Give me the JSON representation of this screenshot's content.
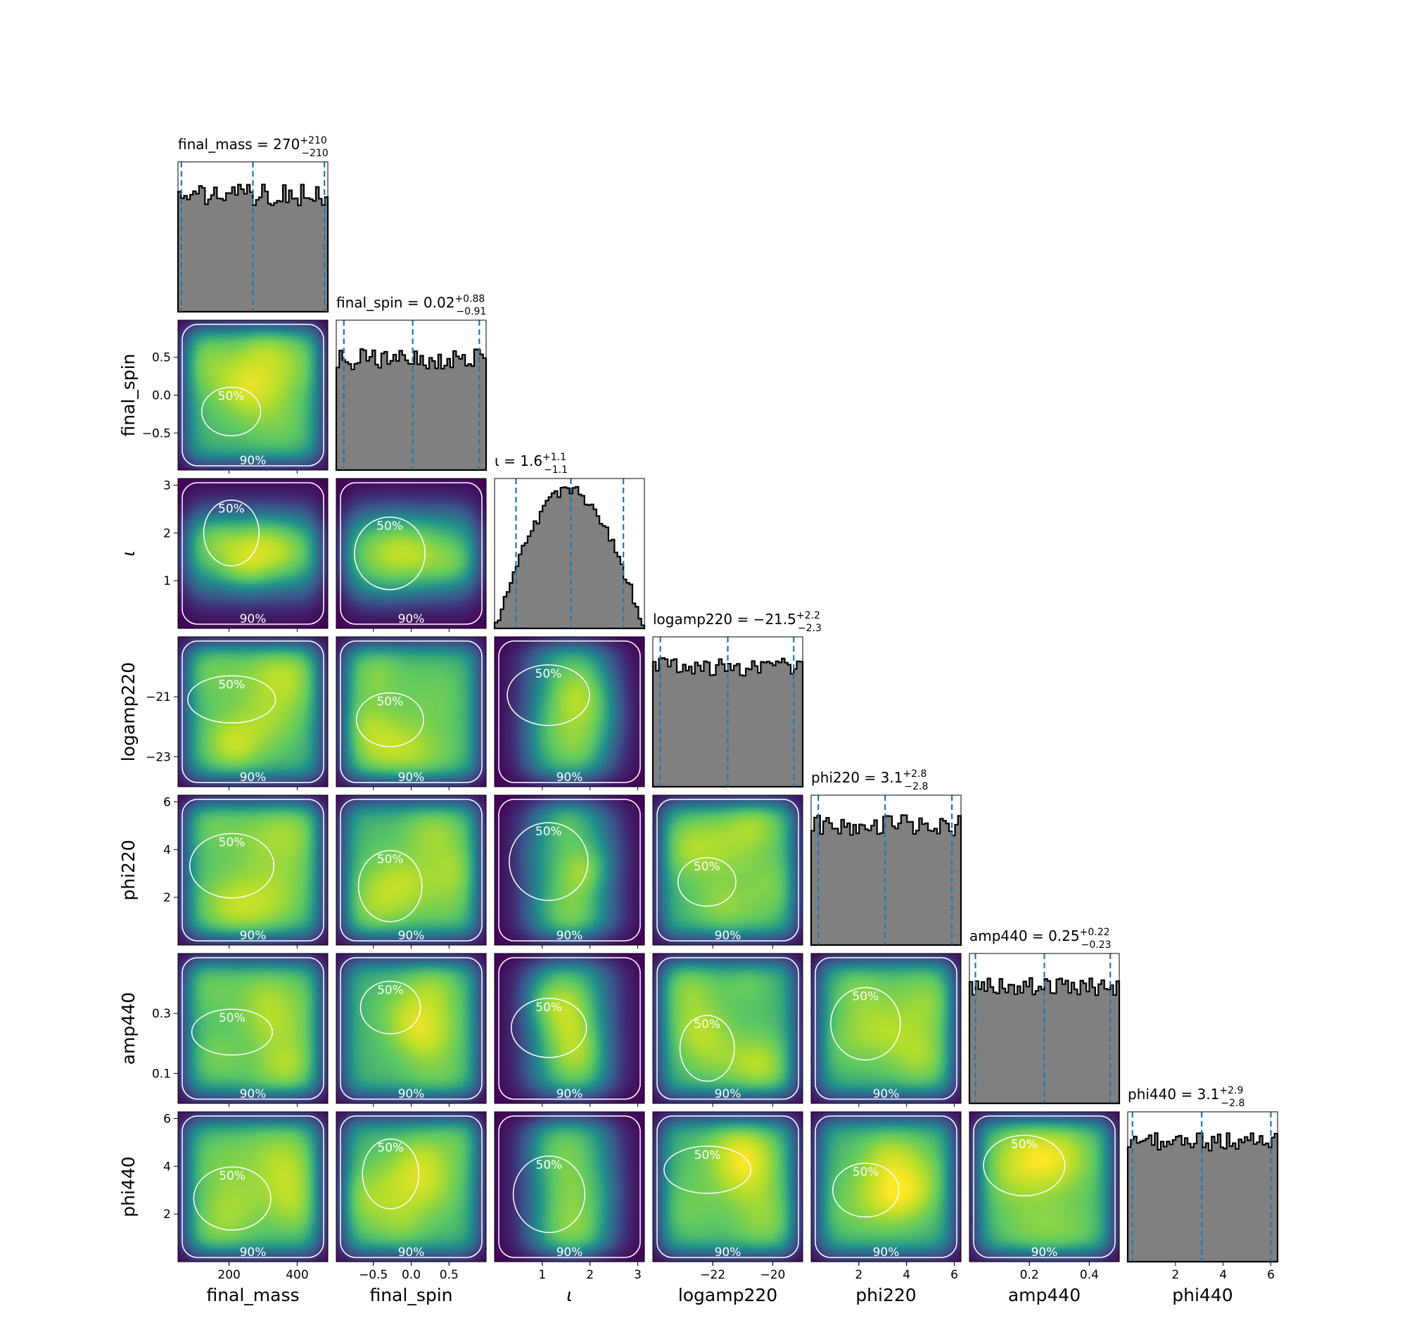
{
  "chart_data": {
    "type": "corner",
    "parameters": [
      {
        "name": "final_mass",
        "label": "final_mass",
        "range": [
          50,
          490
        ],
        "ticks": [
          {
            "v": 200,
            "t": "200"
          },
          {
            "v": 400,
            "t": "400"
          }
        ],
        "title": {
          "main": "final_mass = 270",
          "sup": "+210",
          "sub": "−210"
        },
        "quantiles": [
          60,
          270,
          480
        ],
        "hist_seed": 11,
        "hist_base": 0.78,
        "hist_noise": 0.07
      },
      {
        "name": "final_spin",
        "label": "final_spin",
        "range": [
          -0.99,
          0.99
        ],
        "ticks": [
          {
            "v": -0.5,
            "t": "−0.5"
          },
          {
            "v": 0.0,
            "t": "0.0"
          },
          {
            "v": 0.5,
            "t": "0.5"
          }
        ],
        "title": {
          "main": "final_spin = 0.02",
          "sup": "+0.88",
          "sub": "−0.91"
        },
        "quantiles": [
          -0.89,
          0.02,
          0.9
        ],
        "hist_seed": 23,
        "hist_base": 0.74,
        "hist_noise": 0.07
      },
      {
        "name": "inclination",
        "label": "ι",
        "range": [
          0,
          3.14
        ],
        "ticks": [
          {
            "v": 1,
            "t": "1"
          },
          {
            "v": 2,
            "t": "2"
          },
          {
            "v": 3,
            "t": "3"
          }
        ],
        "title": {
          "main": "ι = 1.6",
          "sup": "+1.1",
          "sub": "−1.1"
        },
        "quantiles": [
          0.45,
          1.6,
          2.7
        ],
        "hist_seed": 37,
        "hist_base": 0.0,
        "hist_noise": 0.04,
        "hist_shape": "sine"
      },
      {
        "name": "logamp220",
        "label": "logamp220",
        "range": [
          -24.0,
          -19.0
        ],
        "ticks": [
          {
            "v": -22,
            "t": "−22"
          },
          {
            "v": -20,
            "t": "−20"
          }
        ],
        "title": {
          "main": "logamp220 = −21.5",
          "sup": "+2.2",
          "sub": "−2.3"
        },
        "quantiles": [
          -23.75,
          -21.5,
          -19.3
        ],
        "hist_seed": 41,
        "hist_base": 0.8,
        "hist_noise": 0.06
      },
      {
        "name": "phi220",
        "label": "phi220",
        "range": [
          0,
          6.28
        ],
        "ticks": [
          {
            "v": 2,
            "t": "2"
          },
          {
            "v": 4,
            "t": "4"
          },
          {
            "v": 6,
            "t": "6"
          }
        ],
        "title": {
          "main": "phi220 = 3.1",
          "sup": "+2.8",
          "sub": "−2.8"
        },
        "quantiles": [
          0.3,
          3.1,
          5.9
        ],
        "hist_seed": 53,
        "hist_base": 0.8,
        "hist_noise": 0.07
      },
      {
        "name": "amp440",
        "label": "amp440",
        "range": [
          0,
          0.5
        ],
        "ticks": [
          {
            "v": 0.2,
            "t": "0.2"
          },
          {
            "v": 0.4,
            "t": "0.4"
          }
        ],
        "title": {
          "main": "amp440 = 0.25",
          "sup": "+0.22",
          "sub": "−0.23"
        },
        "quantiles": [
          0.02,
          0.25,
          0.47
        ],
        "hist_seed": 67,
        "hist_base": 0.78,
        "hist_noise": 0.06
      },
      {
        "name": "phi440",
        "label": "phi440",
        "range": [
          0,
          6.28
        ],
        "ticks": [
          {
            "v": 2,
            "t": "2"
          },
          {
            "v": 4,
            "t": "4"
          },
          {
            "v": 6,
            "t": "6"
          }
        ],
        "title": {
          "main": "phi440 = 3.1",
          "sup": "+2.9",
          "sub": "−2.8"
        },
        "quantiles": [
          0.2,
          3.1,
          6.0
        ],
        "hist_seed": 79,
        "hist_base": 0.8,
        "hist_noise": 0.06
      }
    ],
    "ylabel_ticks": {
      "final_spin": [
        {
          "v": 0.5,
          "t": "0.5"
        },
        {
          "v": 0.0,
          "t": "0.0"
        },
        {
          "v": -0.5,
          "t": "−0.5"
        }
      ],
      "inclination": [
        {
          "v": 3,
          "t": "3"
        },
        {
          "v": 2,
          "t": "2"
        },
        {
          "v": 1,
          "t": "1"
        }
      ],
      "logamp220": [
        {
          "v": -21,
          "t": "−21"
        },
        {
          "v": -23,
          "t": "−23"
        }
      ],
      "phi220": [
        {
          "v": 6,
          "t": "6"
        },
        {
          "v": 4,
          "t": "4"
        },
        {
          "v": 2,
          "t": "2"
        }
      ],
      "amp440": [
        {
          "v": 0.3,
          "t": "0.3"
        },
        {
          "v": 0.1,
          "t": "0.1"
        }
      ],
      "phi440": [
        {
          "v": 6,
          "t": "6"
        },
        {
          "v": 4,
          "t": "4"
        },
        {
          "v": 2,
          "t": "2"
        }
      ]
    },
    "contour_levels": [
      "50%",
      "90%"
    ],
    "hist_bins": 50,
    "colors": {
      "hist_fill": "#808080",
      "hist_edge": "#000000",
      "quantile_line": "#1f77b4",
      "contour": "#ffffff",
      "colormap": [
        "#440154",
        "#3b528b",
        "#21918c",
        "#5ec962",
        "#b5de2b",
        "#fde725"
      ]
    }
  }
}
